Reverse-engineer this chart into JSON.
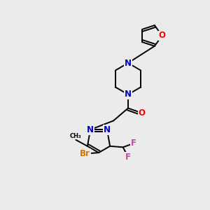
{
  "bg_color": "#ebebeb",
  "atom_colors": {
    "C": "#000000",
    "N": "#0000cc",
    "O": "#ff0000",
    "F": "#cc44aa",
    "Br": "#cc7700",
    "H": "#000000"
  },
  "bond_color": "#000000",
  "bond_width": 1.4,
  "font_size_atom": 8.5
}
